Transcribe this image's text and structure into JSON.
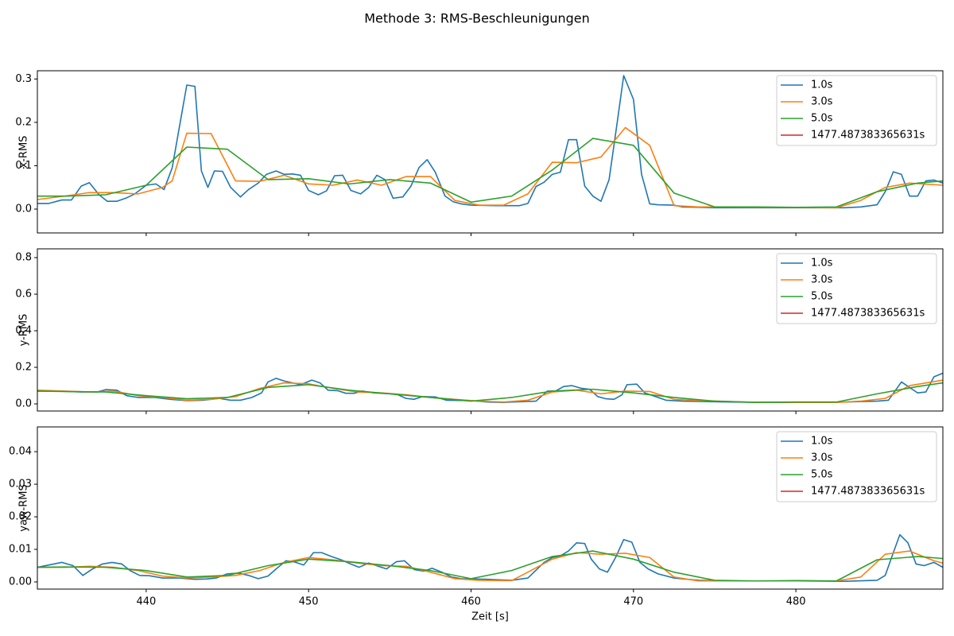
{
  "title": "Methode 3: RMS-Beschleunigungen",
  "chart_data": [
    {
      "type": "line",
      "ylabel": "x-RMS",
      "xlim": [
        433.3,
        489.05
      ],
      "xticks": [
        440,
        450,
        460,
        470,
        480
      ],
      "show_xticklabels": false,
      "ylim": [
        -0.055,
        0.319
      ],
      "yticks": [
        {
          "value": 0,
          "label": "0.0"
        },
        0.1,
        0.2,
        0.3
      ],
      "legend": "upper right",
      "series": [
        {
          "name": "1.0s",
          "color": "#1f77b4",
          "x": [
            433.3,
            434.0,
            434.8,
            435.4,
            436.0,
            436.5,
            437.1,
            437.6,
            438.2,
            438.8,
            439.3,
            440.0,
            440.6,
            441.1,
            441.6,
            442.5,
            443.0,
            443.4,
            443.8,
            444.2,
            444.7,
            445.2,
            445.8,
            446.3,
            446.9,
            447.4,
            448.0,
            448.5,
            449.0,
            449.5,
            450.0,
            450.6,
            451.1,
            451.6,
            452.1,
            452.6,
            453.2,
            453.7,
            454.2,
            454.7,
            455.2,
            455.8,
            456.3,
            456.8,
            457.3,
            457.8,
            458.4,
            458.9,
            459.4,
            460.0,
            461.5,
            463.0,
            463.5,
            464.0,
            464.5,
            465.0,
            465.5,
            466.0,
            466.5,
            467.0,
            467.5,
            468.0,
            468.5,
            469.0,
            469.4,
            470.0,
            470.5,
            471.0,
            471.5,
            472.5,
            473.0,
            475.0,
            480.0,
            483.0,
            484.0,
            485.0,
            485.5,
            486.0,
            486.5,
            487.0,
            487.5,
            488.0,
            488.5,
            489.05
          ],
          "values": [
            0.013,
            0.013,
            0.021,
            0.021,
            0.053,
            0.061,
            0.033,
            0.018,
            0.018,
            0.026,
            0.035,
            0.055,
            0.058,
            0.045,
            0.095,
            0.286,
            0.283,
            0.088,
            0.05,
            0.088,
            0.087,
            0.05,
            0.028,
            0.045,
            0.06,
            0.08,
            0.088,
            0.08,
            0.081,
            0.078,
            0.043,
            0.033,
            0.042,
            0.077,
            0.078,
            0.043,
            0.035,
            0.05,
            0.078,
            0.068,
            0.025,
            0.028,
            0.053,
            0.096,
            0.114,
            0.085,
            0.03,
            0.017,
            0.012,
            0.009,
            0.008,
            0.008,
            0.013,
            0.052,
            0.062,
            0.08,
            0.085,
            0.16,
            0.16,
            0.053,
            0.03,
            0.018,
            0.068,
            0.2,
            0.308,
            0.253,
            0.08,
            0.012,
            0.01,
            0.009,
            0.005,
            0.003,
            0.003,
            0.003,
            0.005,
            0.01,
            0.04,
            0.086,
            0.08,
            0.03,
            0.03,
            0.065,
            0.067,
            0.06
          ]
        },
        {
          "name": "3.0s",
          "color": "#ff7f0e",
          "x": [
            433.3,
            435.0,
            436.5,
            438.0,
            439.5,
            441.0,
            441.6,
            442.5,
            444.0,
            445.5,
            447.0,
            448.5,
            450.0,
            451.5,
            453.0,
            454.5,
            456.0,
            457.5,
            459.0,
            460.5,
            462.0,
            463.5,
            465.0,
            466.5,
            468.0,
            469.5,
            471.0,
            472.5,
            474.0,
            482.5,
            484.0,
            485.5,
            487.0,
            489.05
          ],
          "values": [
            0.022,
            0.03,
            0.038,
            0.038,
            0.035,
            0.05,
            0.065,
            0.175,
            0.174,
            0.065,
            0.064,
            0.078,
            0.058,
            0.055,
            0.067,
            0.055,
            0.075,
            0.075,
            0.02,
            0.009,
            0.009,
            0.035,
            0.108,
            0.107,
            0.12,
            0.188,
            0.147,
            0.008,
            0.005,
            0.003,
            0.02,
            0.05,
            0.06,
            0.055
          ]
        },
        {
          "name": "5.0s",
          "color": "#2ca02c",
          "x": [
            433.3,
            435.0,
            437.5,
            440.0,
            442.5,
            445.0,
            447.5,
            450.0,
            452.5,
            455.0,
            457.5,
            460.0,
            462.5,
            465.0,
            467.5,
            470.0,
            472.5,
            475.0,
            477.5,
            480.0,
            482.5,
            485.0,
            487.5,
            489.05
          ],
          "values": [
            0.03,
            0.03,
            0.033,
            0.055,
            0.143,
            0.138,
            0.068,
            0.07,
            0.058,
            0.068,
            0.06,
            0.016,
            0.03,
            0.09,
            0.163,
            0.147,
            0.037,
            0.005,
            0.005,
            0.004,
            0.005,
            0.04,
            0.06,
            0.065
          ]
        },
        {
          "name": "1477.487383365631s",
          "color": "#d62728"
        }
      ]
    },
    {
      "type": "line",
      "ylabel": "y-RMS",
      "xlim": [
        433.3,
        489.05
      ],
      "xticks": [
        440,
        450,
        460,
        470,
        480
      ],
      "show_xticklabels": false,
      "ylim": [
        -0.039,
        0.848
      ],
      "yticks": [
        {
          "value": 0,
          "label": "0.0"
        },
        0.2,
        0.4,
        0.6,
        0.8
      ],
      "legend": "upper right",
      "series": [
        {
          "name": "1.0s",
          "color": "#1f77b4",
          "x": [
            433.3,
            434.5,
            436.0,
            437.0,
            437.5,
            438.2,
            438.8,
            439.5,
            440.5,
            441.5,
            442.5,
            443.5,
            444.5,
            445.2,
            445.8,
            446.5,
            447.1,
            447.5,
            448.0,
            448.5,
            449.5,
            450.2,
            450.7,
            451.2,
            451.8,
            452.3,
            452.8,
            453.3,
            454.0,
            455.0,
            455.5,
            456.0,
            456.5,
            457.0,
            457.8,
            458.5,
            460.0,
            461.0,
            462.0,
            463.0,
            464.0,
            464.7,
            465.2,
            465.7,
            466.2,
            466.8,
            467.3,
            467.8,
            468.3,
            468.8,
            469.3,
            469.6,
            470.2,
            470.7,
            471.2,
            472.0,
            473.0,
            476.0,
            479.0,
            482.0,
            483.0,
            485.0,
            485.7,
            486.5,
            487.5,
            488.0,
            488.5,
            489.05
          ],
          "values": [
            0.07,
            0.07,
            0.065,
            0.065,
            0.078,
            0.075,
            0.045,
            0.035,
            0.035,
            0.025,
            0.018,
            0.02,
            0.03,
            0.02,
            0.02,
            0.035,
            0.06,
            0.12,
            0.14,
            0.125,
            0.105,
            0.13,
            0.115,
            0.075,
            0.072,
            0.058,
            0.058,
            0.07,
            0.06,
            0.055,
            0.05,
            0.03,
            0.025,
            0.04,
            0.038,
            0.02,
            0.018,
            0.01,
            0.008,
            0.012,
            0.015,
            0.07,
            0.07,
            0.095,
            0.1,
            0.085,
            0.08,
            0.04,
            0.028,
            0.025,
            0.05,
            0.105,
            0.108,
            0.06,
            0.045,
            0.02,
            0.015,
            0.01,
            0.008,
            0.008,
            0.01,
            0.015,
            0.02,
            0.12,
            0.06,
            0.065,
            0.148,
            0.168
          ]
        },
        {
          "name": "3.0s",
          "color": "#ff7f0e",
          "x": [
            433.3,
            435.0,
            436.5,
            438.0,
            439.5,
            441.0,
            442.5,
            444.0,
            445.5,
            447.0,
            448.5,
            450.0,
            451.5,
            453.0,
            454.5,
            456.0,
            457.5,
            459.0,
            460.5,
            462.0,
            463.5,
            465.0,
            466.5,
            468.0,
            469.5,
            471.0,
            472.5,
            474.0,
            477.0,
            480.0,
            482.5,
            484.0,
            485.5,
            487.0,
            489.05
          ],
          "values": [
            0.075,
            0.07,
            0.065,
            0.07,
            0.045,
            0.035,
            0.02,
            0.025,
            0.04,
            0.085,
            0.115,
            0.11,
            0.085,
            0.065,
            0.06,
            0.05,
            0.035,
            0.025,
            0.015,
            0.01,
            0.02,
            0.065,
            0.075,
            0.055,
            0.07,
            0.068,
            0.025,
            0.018,
            0.01,
            0.008,
            0.008,
            0.015,
            0.03,
            0.1,
            0.13
          ]
        },
        {
          "name": "5.0s",
          "color": "#2ca02c",
          "x": [
            433.3,
            435.0,
            437.5,
            440.0,
            442.5,
            445.0,
            447.5,
            450.0,
            452.5,
            455.0,
            457.5,
            460.0,
            462.5,
            465.0,
            467.5,
            470.0,
            472.5,
            475.0,
            477.5,
            480.0,
            482.5,
            485.0,
            487.5,
            489.05
          ],
          "values": [
            0.07,
            0.068,
            0.065,
            0.045,
            0.028,
            0.035,
            0.09,
            0.105,
            0.075,
            0.055,
            0.035,
            0.015,
            0.035,
            0.07,
            0.08,
            0.06,
            0.035,
            0.015,
            0.008,
            0.01,
            0.01,
            0.055,
            0.095,
            0.115
          ]
        },
        {
          "name": "1477.487383365631s",
          "color": "#d62728"
        }
      ]
    },
    {
      "type": "line",
      "ylabel": "yaw-RMS",
      "xlabel": "Zeit [s]",
      "xlim": [
        433.3,
        489.05
      ],
      "xticks": [
        440,
        450,
        460,
        470,
        480
      ],
      "show_xticklabels": true,
      "ylim": [
        -0.0022,
        0.0476
      ],
      "yticks": [
        {
          "value": 0,
          "label": "0.00"
        },
        0.01,
        0.02,
        0.03,
        0.04
      ],
      "legend": "upper right",
      "series": [
        {
          "name": "1.0s",
          "color": "#1f77b4",
          "x": [
            433.3,
            434.8,
            435.5,
            436.1,
            436.7,
            437.3,
            437.9,
            438.5,
            439.0,
            439.6,
            440.2,
            441.0,
            442.0,
            443.0,
            443.7,
            444.3,
            445.0,
            445.7,
            446.3,
            446.9,
            447.5,
            448.0,
            448.6,
            449.1,
            449.7,
            450.3,
            450.8,
            451.4,
            452.0,
            452.6,
            453.1,
            453.7,
            454.3,
            454.8,
            455.4,
            455.9,
            456.5,
            457.1,
            457.6,
            458.2,
            458.8,
            459.4,
            461.0,
            462.5,
            463.5,
            464.5,
            465.0,
            465.5,
            466.0,
            466.5,
            467.0,
            467.4,
            467.9,
            468.4,
            468.9,
            469.4,
            469.9,
            470.4,
            470.9,
            471.5,
            472.5,
            474.0,
            476.0,
            480.0,
            483.0,
            485.0,
            485.5,
            486.0,
            486.4,
            486.9,
            487.4,
            487.9,
            488.5,
            489.05
          ],
          "values": [
            0.0045,
            0.006,
            0.005,
            0.002,
            0.004,
            0.0055,
            0.006,
            0.0055,
            0.0035,
            0.002,
            0.0019,
            0.0012,
            0.0012,
            0.0008,
            0.0009,
            0.0012,
            0.0025,
            0.0027,
            0.002,
            0.001,
            0.0018,
            0.004,
            0.0065,
            0.0062,
            0.0052,
            0.009,
            0.009,
            0.0078,
            0.0068,
            0.0055,
            0.0045,
            0.0058,
            0.0048,
            0.004,
            0.0062,
            0.0065,
            0.0038,
            0.0033,
            0.0042,
            0.003,
            0.0015,
            0.001,
            0.0008,
            0.0005,
            0.0012,
            0.006,
            0.0075,
            0.008,
            0.0095,
            0.012,
            0.0118,
            0.007,
            0.004,
            0.003,
            0.0075,
            0.013,
            0.0122,
            0.006,
            0.004,
            0.0025,
            0.0012,
            0.0005,
            0.0003,
            0.0003,
            0.0002,
            0.0005,
            0.002,
            0.009,
            0.0145,
            0.012,
            0.0055,
            0.005,
            0.006,
            0.0045
          ]
        },
        {
          "name": "3.0s",
          "color": "#ff7f0e",
          "x": [
            433.3,
            435.0,
            436.5,
            438.0,
            439.5,
            441.0,
            442.5,
            444.0,
            445.5,
            447.0,
            448.5,
            450.0,
            451.5,
            453.0,
            454.5,
            456.0,
            457.5,
            459.0,
            460.5,
            462.5,
            463.5,
            465.0,
            466.5,
            468.0,
            469.5,
            471.0,
            472.5,
            474.0,
            477.0,
            480.0,
            482.5,
            484.0,
            485.5,
            487.0,
            488.5,
            489.05
          ],
          "values": [
            0.0045,
            0.0045,
            0.0048,
            0.0045,
            0.0035,
            0.0018,
            0.0012,
            0.0015,
            0.002,
            0.0035,
            0.006,
            0.0075,
            0.0068,
            0.0058,
            0.005,
            0.0048,
            0.003,
            0.001,
            0.0005,
            0.0004,
            0.003,
            0.007,
            0.009,
            0.0085,
            0.0088,
            0.0075,
            0.0015,
            0.0003,
            0.0003,
            0.0003,
            0.0003,
            0.0015,
            0.0085,
            0.0095,
            0.0065,
            0.0058
          ]
        },
        {
          "name": "5.0s",
          "color": "#2ca02c",
          "x": [
            433.3,
            435.0,
            437.5,
            440.0,
            442.5,
            445.0,
            447.5,
            450.0,
            452.5,
            455.0,
            457.5,
            460.0,
            462.5,
            465.0,
            467.5,
            470.0,
            472.5,
            475.0,
            477.5,
            480.0,
            482.5,
            485.0,
            487.5,
            489.05
          ],
          "values": [
            0.0045,
            0.0046,
            0.0045,
            0.0035,
            0.0015,
            0.002,
            0.005,
            0.007,
            0.0062,
            0.005,
            0.0035,
            0.001,
            0.0035,
            0.0078,
            0.0095,
            0.007,
            0.003,
            0.0005,
            0.0003,
            0.0004,
            0.0003,
            0.0068,
            0.0078,
            0.0072
          ]
        },
        {
          "name": "1477.487383365631s",
          "color": "#d62728"
        }
      ]
    }
  ]
}
